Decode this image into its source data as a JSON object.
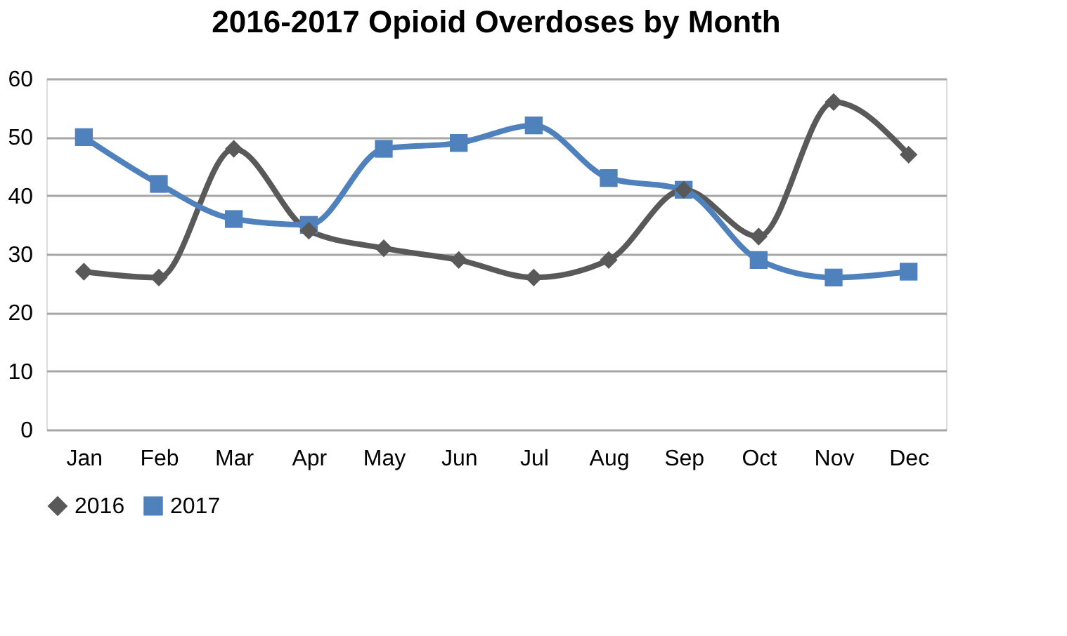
{
  "chart_data": {
    "type": "line",
    "title": "2016-2017 Opioid Overdoses by Month",
    "categories": [
      "Jan",
      "Feb",
      "Mar",
      "Apr",
      "May",
      "Jun",
      "Jul",
      "Aug",
      "Sep",
      "Oct",
      "Nov",
      "Dec"
    ],
    "series": [
      {
        "name": "2016",
        "color": "#595959",
        "marker": "diamond",
        "values": [
          27,
          26,
          48,
          34,
          31,
          29,
          26,
          29,
          41,
          33,
          56,
          47
        ]
      },
      {
        "name": "2017",
        "color": "#4f81bd",
        "marker": "square",
        "values": [
          50,
          42,
          36,
          35,
          48,
          49,
          52,
          43,
          41,
          29,
          26,
          27
        ]
      }
    ],
    "ylim": [
      0,
      60
    ],
    "yticks": [
      0,
      10,
      20,
      30,
      40,
      50,
      60
    ],
    "grid": "y",
    "legend": "bottom",
    "line_style": "solid"
  }
}
